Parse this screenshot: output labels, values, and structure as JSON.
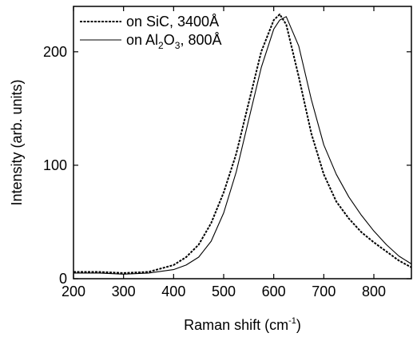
{
  "chart_data": {
    "type": "line",
    "title": "",
    "xlabel": {
      "main": "Raman shift (cm",
      "sup": "-1",
      "close": ")"
    },
    "ylabel": "Intensity (arb. units)",
    "xlim": [
      200,
      875
    ],
    "ylim": [
      0,
      240
    ],
    "xticks": [
      200,
      300,
      400,
      500,
      600,
      700,
      800
    ],
    "xtick_labels": [
      "200",
      "300",
      "400",
      "500",
      "600",
      "700",
      "800"
    ],
    "yticks": [
      0,
      100,
      200
    ],
    "ytick_labels": [
      "0",
      "100",
      "200"
    ],
    "grid": false,
    "legend_position": "top-left",
    "series": [
      {
        "name": "on SiC, 3400Å",
        "legend": {
          "pre": "on SiC, 3400Å",
          "sub1": "",
          "mid": "",
          "sub2": "",
          "post": ""
        },
        "style": "dashed",
        "x": [
          200,
          250,
          300,
          350,
          400,
          425,
          450,
          475,
          500,
          525,
          550,
          575,
          600,
          612,
          625,
          650,
          675,
          700,
          725,
          750,
          775,
          800,
          825,
          850,
          875
        ],
        "y": [
          6,
          6,
          5,
          6,
          12,
          19,
          30,
          49,
          76,
          110,
          155,
          200,
          228,
          233,
          224,
          178,
          128,
          92,
          68,
          53,
          41,
          32,
          24,
          16,
          10
        ]
      },
      {
        "name": "on Al2O3, 800Å",
        "legend": {
          "pre": "on Al",
          "sub1": "2",
          "mid": "O",
          "sub2": "3",
          "post": ", 800Å"
        },
        "style": "solid",
        "x": [
          200,
          250,
          300,
          350,
          400,
          425,
          450,
          475,
          500,
          525,
          550,
          575,
          600,
          612,
          625,
          650,
          675,
          700,
          725,
          750,
          775,
          800,
          825,
          850,
          875
        ],
        "y": [
          5,
          5,
          4,
          5,
          8,
          12,
          19,
          33,
          58,
          94,
          140,
          186,
          220,
          228,
          231,
          205,
          158,
          118,
          92,
          72,
          56,
          42,
          30,
          20,
          13
        ]
      }
    ]
  }
}
